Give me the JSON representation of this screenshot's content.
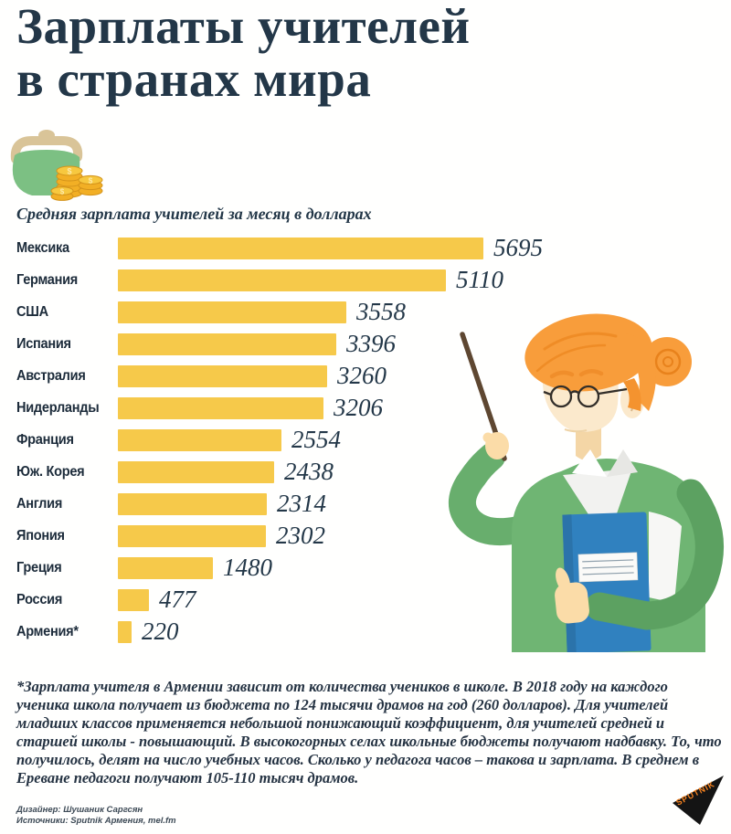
{
  "header": {
    "title_line1": "Зарплаты учителей",
    "title_line2": "в странах мира",
    "subtitle": "Средняя зарплата учителей за месяц в долларах"
  },
  "chart_data": {
    "type": "bar",
    "orientation": "horizontal",
    "title": "Зарплаты учителей в странах мира",
    "subtitle": "Средняя зарплата учителей за месяц в долларах",
    "unit": "доллары США в месяц",
    "categories": [
      "Мексика",
      "Германия",
      "США",
      "Испания",
      "Австралия",
      "Нидерланды",
      "Франция",
      "Юж. Корея",
      "Англия",
      "Япония",
      "Греция",
      "Россия",
      "Армения*"
    ],
    "values": [
      5695,
      5110,
      3558,
      3396,
      3260,
      3206,
      2554,
      2438,
      2314,
      2302,
      1480,
      477,
      220
    ],
    "xlim": [
      0,
      5695
    ],
    "bar_color": "#F6C94A",
    "grid": false,
    "legend": false,
    "value_labels": "end-of-bar"
  },
  "footnote": "*Зарплата учителя в Армении зависит от количества учеников в школе. В 2018 году на каждого ученика школа получает из бюджета по 124 тысячи драмов на год (260 долларов). Для учителей младших классов применяется небольшой понижающий коэффициент, для учителей средней и старшей школы - повышающий. В высокогорных селах школьные бюджеты получают надбавку. То, что получилось, делят на число учебных часов. Сколько у педагога часов – такова и зарплата. В среднем в Ереване педагоги получают 105-110 тысяч драмов.",
  "credits": {
    "designer": "Дизайнер: Шушаник Саргсян",
    "sources": "Источники: Sputnik Армения, mel.fm"
  },
  "logo": {
    "text": "SPUTNIK",
    "color": "#F58220"
  },
  "icons": {
    "money_symbol": "$"
  },
  "colors": {
    "ink": "#233748",
    "bar": "#F6C94A",
    "purse_green": "#7CC083",
    "coin_gold": "#F2AF25"
  }
}
